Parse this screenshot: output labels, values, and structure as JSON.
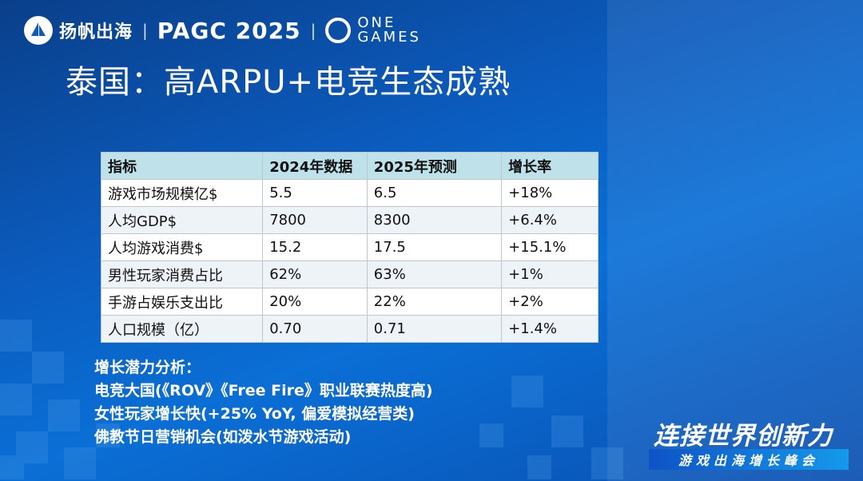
{
  "header": {
    "brand": "扬帆出海",
    "event": "PAGC 2025",
    "separator": "|",
    "partner_top": "ONE",
    "partner_bottom": "GAMES"
  },
  "title": "泰国：高ARPU+电竞生态成熟",
  "table": {
    "headers": [
      "指标",
      "2024年数据",
      "2025年预测",
      "增长率"
    ],
    "rows": [
      [
        "游戏市场规模亿$",
        "5.5",
        "6.5",
        "+18%"
      ],
      [
        "人均GDP$",
        "7800",
        "8300",
        "+6.4%"
      ],
      [
        "人均游戏消费$",
        "15.2",
        "17.5",
        "+15.1%"
      ],
      [
        "男性玩家消费占比",
        "62%",
        "63%",
        "+1%"
      ],
      [
        "手游占娱乐支出比",
        "20%",
        "22%",
        "+2%"
      ],
      [
        "人口规模（亿）",
        "0.70",
        "0.71",
        "+1.4%"
      ]
    ]
  },
  "analysis": {
    "heading": "增长潜力分析：",
    "points": [
      "电竞大国(《ROV》《Free Fire》职业联赛热度高)",
      "女性玩家增长快(+25% YoY, 偏爱模拟经营类)",
      "佛教节日营销机会(如泼水节游戏活动)"
    ]
  },
  "slogan": "连接世界创新力",
  "subslogan": "游戏出海增长峰会"
}
